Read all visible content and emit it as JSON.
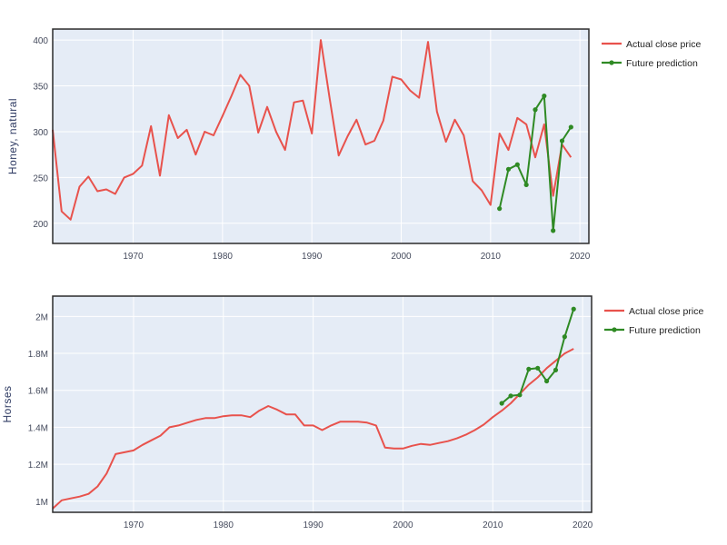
{
  "chart_data": [
    {
      "type": "line",
      "ylabel": "Honey, natural",
      "xlim": [
        1961,
        2021
      ],
      "ylim": [
        178,
        412
      ],
      "xticks": [
        1970,
        1980,
        1990,
        2000,
        2010,
        2020
      ],
      "xtick_labels": [
        "1970",
        "1980",
        "1990",
        "2000",
        "2010",
        "2020"
      ],
      "yticks": [
        200,
        250,
        300,
        350,
        400
      ],
      "ytick_labels": [
        "200",
        "250",
        "300",
        "350",
        "400"
      ],
      "grid": true,
      "legend_position": "top-right",
      "series": [
        {
          "name": "Actual close price",
          "color": "#e8524c",
          "markers": false,
          "x": [
            1961,
            1962,
            1963,
            1964,
            1965,
            1966,
            1967,
            1968,
            1969,
            1970,
            1971,
            1972,
            1973,
            1974,
            1975,
            1976,
            1977,
            1978,
            1979,
            1980,
            1981,
            1982,
            1983,
            1984,
            1985,
            1986,
            1987,
            1988,
            1989,
            1990,
            1991,
            1992,
            1993,
            1994,
            1995,
            1996,
            1997,
            1998,
            1999,
            2000,
            2001,
            2002,
            2003,
            2004,
            2005,
            2006,
            2007,
            2008,
            2009,
            2010,
            2011,
            2012,
            2013,
            2014,
            2015,
            2016,
            2017,
            2018,
            2019
          ],
          "y": [
            302,
            213,
            204,
            240,
            251,
            235,
            237,
            232,
            250,
            254,
            263,
            306,
            252,
            318,
            293,
            302,
            275,
            300,
            296,
            317,
            339,
            362,
            350,
            299,
            327,
            300,
            280,
            332,
            334,
            298,
            400,
            336,
            274,
            295,
            313,
            286,
            290,
            312,
            360,
            357,
            345,
            337,
            398,
            322,
            289,
            313,
            296,
            246,
            236,
            220,
            298,
            280,
            315,
            308,
            272,
            308,
            230,
            286,
            272
          ]
        },
        {
          "name": "Future prediction",
          "color": "#2f8a24",
          "markers": true,
          "x": [
            2011,
            2012,
            2013,
            2014,
            2015,
            2016,
            2017,
            2018,
            2019
          ],
          "y": [
            216,
            259,
            264,
            242,
            324,
            339,
            192,
            290,
            305
          ]
        }
      ]
    },
    {
      "type": "line",
      "ylabel": "Horses",
      "xlim": [
        1961,
        2021
      ],
      "ylim": [
        940000,
        2110000
      ],
      "xticks": [
        1970,
        1980,
        1990,
        2000,
        2010,
        2020
      ],
      "xtick_labels": [
        "1970",
        "1980",
        "1990",
        "2000",
        "2010",
        "2020"
      ],
      "yticks": [
        1000000,
        1200000,
        1400000,
        1600000,
        1800000,
        2000000
      ],
      "ytick_labels": [
        "1M",
        "1.2M",
        "1.4M",
        "1.6M",
        "1.8M",
        "2M"
      ],
      "grid": true,
      "legend_position": "top-right",
      "series": [
        {
          "name": "Actual close price",
          "color": "#e8524c",
          "markers": false,
          "x": [
            1961,
            1962,
            1963,
            1964,
            1965,
            1966,
            1967,
            1968,
            1969,
            1970,
            1971,
            1972,
            1973,
            1974,
            1975,
            1976,
            1977,
            1978,
            1979,
            1980,
            1981,
            1982,
            1983,
            1984,
            1985,
            1986,
            1987,
            1988,
            1989,
            1990,
            1991,
            1992,
            1993,
            1994,
            1995,
            1996,
            1997,
            1998,
            1999,
            2000,
            2001,
            2002,
            2003,
            2004,
            2005,
            2006,
            2007,
            2008,
            2009,
            2010,
            2011,
            2012,
            2013,
            2014,
            2015,
            2016,
            2017,
            2018,
            2019
          ],
          "y": [
            960000,
            1005000,
            1015000,
            1025000,
            1040000,
            1080000,
            1150000,
            1255000,
            1265000,
            1275000,
            1305000,
            1330000,
            1355000,
            1400000,
            1410000,
            1425000,
            1440000,
            1450000,
            1450000,
            1460000,
            1465000,
            1465000,
            1455000,
            1490000,
            1515000,
            1495000,
            1470000,
            1470000,
            1410000,
            1410000,
            1385000,
            1410000,
            1430000,
            1430000,
            1430000,
            1425000,
            1410000,
            1290000,
            1285000,
            1285000,
            1300000,
            1310000,
            1305000,
            1315000,
            1325000,
            1340000,
            1360000,
            1385000,
            1415000,
            1455000,
            1490000,
            1530000,
            1580000,
            1630000,
            1670000,
            1720000,
            1760000,
            1800000,
            1825000
          ]
        },
        {
          "name": "Future prediction",
          "color": "#2f8a24",
          "markers": true,
          "x": [
            2011,
            2012,
            2013,
            2014,
            2015,
            2016,
            2017,
            2018,
            2019
          ],
          "y": [
            1530000,
            1570000,
            1575000,
            1715000,
            1720000,
            1650000,
            1710000,
            1890000,
            2040000
          ]
        }
      ]
    }
  ]
}
